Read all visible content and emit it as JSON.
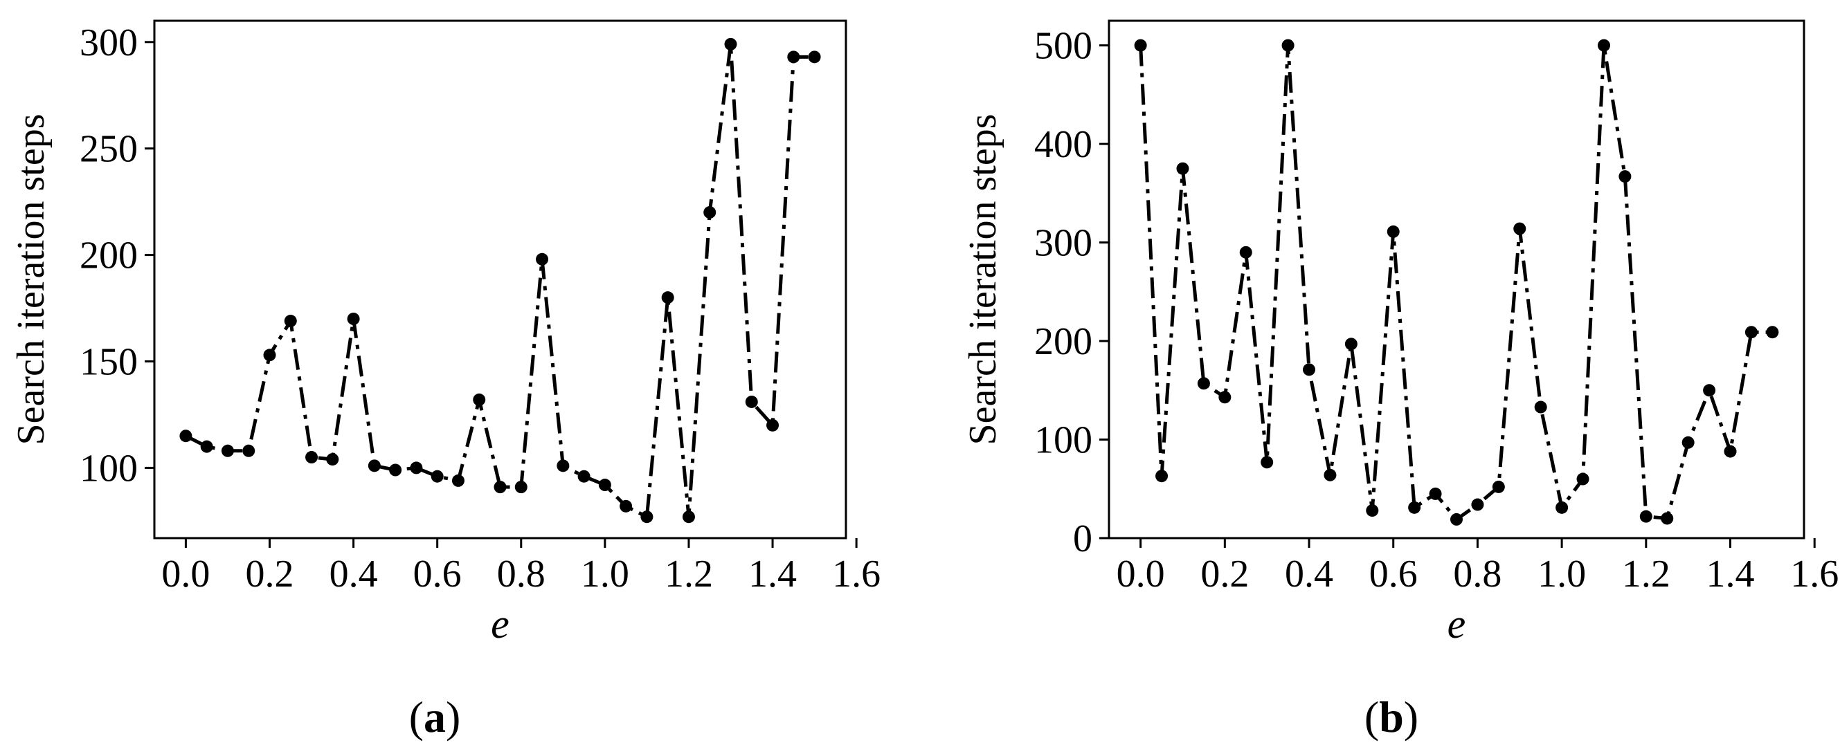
{
  "chart_data": [
    {
      "type": "line",
      "panel_label": "a",
      "xlabel": "e",
      "ylabel": "Search iteration steps",
      "xlim": [
        -0.075,
        1.575
      ],
      "ylim": [
        67,
        310
      ],
      "xticks": [
        "0.0",
        "0.2",
        "0.4",
        "0.6",
        "0.8",
        "1.0",
        "1.2",
        "1.4",
        "1.6"
      ],
      "yticks": [
        "100",
        "150",
        "200",
        "250",
        "300"
      ],
      "line_style": "dash-dot",
      "marker": "circle",
      "color": "#000000",
      "x": [
        0.0,
        0.05,
        0.1,
        0.15,
        0.2,
        0.25,
        0.3,
        0.35,
        0.4,
        0.45,
        0.5,
        0.55,
        0.6,
        0.65,
        0.7,
        0.75,
        0.8,
        0.85,
        0.9,
        0.95,
        1.0,
        1.05,
        1.1,
        1.15,
        1.2,
        1.25,
        1.3,
        1.35,
        1.4,
        1.45,
        1.5
      ],
      "y": [
        115,
        110,
        108,
        108,
        153,
        169,
        105,
        104,
        170,
        101,
        99,
        100,
        96,
        94,
        132,
        91,
        91,
        198,
        101,
        96,
        92,
        82,
        77,
        180,
        77,
        220,
        299,
        131,
        120,
        293,
        293
      ]
    },
    {
      "type": "line",
      "panel_label": "b",
      "xlabel": "e",
      "ylabel": "Search iteration steps",
      "xlim": [
        -0.075,
        1.575
      ],
      "ylim": [
        0,
        525
      ],
      "xticks": [
        "0.0",
        "0.2",
        "0.4",
        "0.6",
        "0.8",
        "1.0",
        "1.2",
        "1.4",
        "1.6"
      ],
      "yticks": [
        "0",
        "100",
        "200",
        "300",
        "400",
        "500"
      ],
      "line_style": "dash-dot",
      "marker": "circle",
      "color": "#000000",
      "x": [
        0.0,
        0.05,
        0.1,
        0.15,
        0.2,
        0.25,
        0.3,
        0.35,
        0.4,
        0.45,
        0.5,
        0.55,
        0.6,
        0.65,
        0.7,
        0.75,
        0.8,
        0.85,
        0.9,
        0.95,
        1.0,
        1.05,
        1.1,
        1.15,
        1.2,
        1.25,
        1.3,
        1.35,
        1.4,
        1.45,
        1.5
      ],
      "y": [
        500,
        63,
        375,
        157,
        143,
        290,
        77,
        500,
        171,
        64,
        197,
        28,
        311,
        31,
        45,
        19,
        34,
        52,
        314,
        133,
        31,
        60,
        500,
        367,
        22,
        20,
        97,
        150,
        88,
        209,
        209
      ]
    }
  ]
}
